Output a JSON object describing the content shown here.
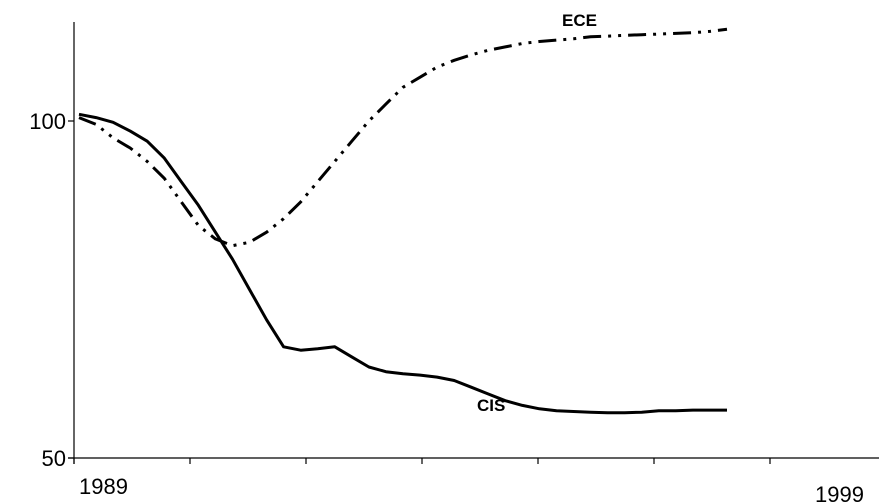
{
  "chart_data": {
    "type": "line",
    "title": "",
    "xlabel": "",
    "ylabel": "",
    "x_tick_labels": {
      "start": "1989",
      "end": "1999"
    },
    "xlim": [
      1989,
      1999
    ],
    "ylim": [
      50,
      115
    ],
    "y_ticks": [
      100,
      50
    ],
    "grid": false,
    "legend": "none",
    "series": [
      {
        "name": "ECE",
        "style": "dash-dot-dot",
        "color": "#000000",
        "x": [
          1989.0,
          1989.2,
          1989.4,
          1989.6,
          1989.8,
          1990.0,
          1990.2,
          1990.4,
          1990.6,
          1990.8,
          1991.0,
          1991.2,
          1991.4,
          1991.6,
          1991.8,
          1992.0,
          1992.2,
          1992.4,
          1992.6,
          1992.8,
          1993.0,
          1993.2,
          1993.4,
          1993.6,
          1993.8,
          1994.0,
          1994.2,
          1994.4,
          1994.6,
          1994.8,
          1995.0,
          1995.2,
          1995.4,
          1995.6,
          1995.8,
          1996.0,
          1996.2,
          1996.4,
          1996.6
        ],
        "y": [
          100.5,
          99.5,
          97.5,
          96.0,
          94.0,
          91.5,
          88.0,
          84.5,
          82.5,
          81.5,
          82.0,
          83.5,
          85.5,
          88.0,
          91.0,
          94.0,
          97.0,
          100.0,
          102.5,
          105.0,
          106.5,
          108.0,
          109.0,
          109.8,
          110.5,
          111.0,
          111.5,
          111.8,
          112.0,
          112.2,
          112.5,
          112.6,
          112.7,
          112.8,
          112.9,
          113.0,
          113.1,
          113.3,
          113.6
        ]
      },
      {
        "name": "CIS",
        "style": "solid",
        "color": "#000000",
        "x": [
          1989.0,
          1989.2,
          1989.4,
          1989.6,
          1989.8,
          1990.0,
          1990.2,
          1990.4,
          1990.6,
          1990.8,
          1991.0,
          1991.2,
          1991.4,
          1991.6,
          1991.8,
          1992.0,
          1992.2,
          1992.4,
          1992.6,
          1992.8,
          1993.0,
          1993.2,
          1993.4,
          1993.6,
          1993.8,
          1994.0,
          1994.2,
          1994.4,
          1994.6,
          1994.8,
          1995.0,
          1995.2,
          1995.4,
          1995.6,
          1995.8,
          1996.0,
          1996.2,
          1996.4,
          1996.6
        ],
        "y": [
          101.0,
          100.5,
          99.8,
          98.5,
          97.0,
          94.5,
          91.0,
          87.5,
          83.5,
          79.5,
          75.0,
          70.5,
          66.5,
          66.0,
          66.2,
          66.5,
          65.0,
          63.5,
          62.8,
          62.5,
          62.3,
          62.0,
          61.5,
          60.5,
          59.5,
          58.5,
          57.8,
          57.3,
          57.0,
          56.9,
          56.8,
          56.7,
          56.7,
          56.8,
          57.0,
          57.0,
          57.1,
          57.1,
          57.1
        ]
      }
    ]
  }
}
